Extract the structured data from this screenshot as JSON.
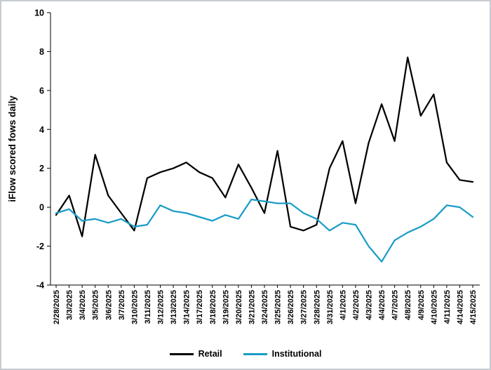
{
  "chart_data": {
    "type": "line",
    "title": "",
    "xlabel": "",
    "ylabel": "iFlow scored fows daily",
    "ylim": [
      -4,
      10
    ],
    "yticks": [
      10,
      8,
      6,
      4,
      2,
      0,
      -2,
      -4
    ],
    "grid": false,
    "legend_position": "bottom",
    "categories": [
      "2/28/2025",
      "3/3/2025",
      "3/4/2025",
      "3/5/2025",
      "3/6/2025",
      "3/7/2025",
      "3/10/2025",
      "3/11/2025",
      "3/12/2025",
      "3/13/2025",
      "3/14/2025",
      "3/17/2025",
      "3/18/2025",
      "3/19/2025",
      "3/20/2025",
      "3/21/2025",
      "3/24/2025",
      "3/25/2025",
      "3/26/2025",
      "3/27/2025",
      "3/28/2025",
      "3/31/2025",
      "4/1/2025",
      "4/2/2025",
      "4/3/2025",
      "4/4/2025",
      "4/7/2025",
      "4/8/2025",
      "4/9/2025",
      "4/10/2025",
      "4/11/2025",
      "4/14/2025",
      "4/15/2025"
    ],
    "series": [
      {
        "name": "Retail",
        "color": "#000000",
        "values": [
          -0.4,
          0.6,
          -1.5,
          2.7,
          0.6,
          -0.3,
          -1.2,
          1.5,
          1.8,
          2.0,
          2.3,
          1.8,
          1.5,
          0.5,
          2.2,
          1.0,
          -0.3,
          2.9,
          -1.0,
          -1.2,
          -0.9,
          2.0,
          3.4,
          0.2,
          3.3,
          5.3,
          3.4,
          7.7,
          4.7,
          5.8,
          2.3,
          1.4,
          1.3
        ]
      },
      {
        "name": "Institutional",
        "color": "#1a9cc7",
        "values": [
          -0.3,
          -0.1,
          -0.7,
          -0.6,
          -0.8,
          -0.6,
          -1.0,
          -0.9,
          0.1,
          -0.2,
          -0.3,
          -0.5,
          -0.7,
          -0.4,
          -0.6,
          0.4,
          0.3,
          0.2,
          0.2,
          -0.3,
          -0.6,
          -1.2,
          -0.8,
          -0.9,
          -2.0,
          -2.8,
          -1.7,
          -1.3,
          -1.0,
          -0.6,
          0.1,
          0.0,
          -0.5
        ]
      }
    ]
  }
}
